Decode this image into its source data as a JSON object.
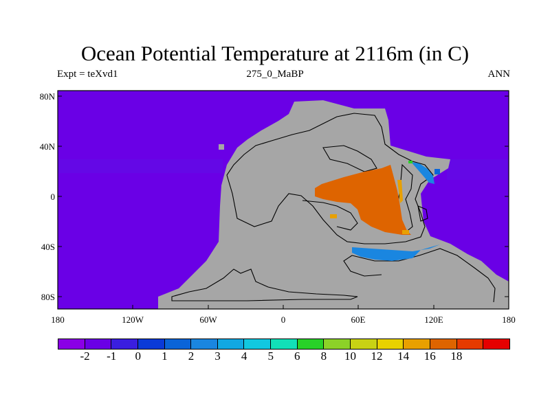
{
  "title": "Ocean Potential Temperature at 2116m (in C)",
  "subtitle_left": "Expt = teXvd1",
  "subtitle_center": "275_0_MaBP",
  "subtitle_right": "ANN",
  "axes": {
    "lon_ticks": [
      "180",
      "120W",
      "60W",
      "0",
      "60E",
      "120E",
      "180"
    ],
    "lat_ticks": [
      "80N",
      "40N",
      "0",
      "40S",
      "80S"
    ]
  },
  "colors": {
    "ocean_base": "#6a00e6",
    "land": "#a6a6a6",
    "warm_basin": "#de6400",
    "warm_edge": "#e8a000",
    "cool_shelf": "#1a86e0",
    "coast_line": "#000000"
  },
  "colorbar": {
    "colors": [
      "#8a00e6",
      "#6a00e6",
      "#3a1ee0",
      "#0a3ad8",
      "#0a64d8",
      "#1a86e0",
      "#12a8e2",
      "#12c8e0",
      "#12e0b8",
      "#28d228",
      "#8cd228",
      "#c8d214",
      "#e8d200",
      "#e8a000",
      "#de6400",
      "#e63a00",
      "#e60000"
    ],
    "labels": [
      "-2",
      "-1",
      "0",
      "1",
      "2",
      "3",
      "4",
      "5",
      "6",
      "8",
      "10",
      "12",
      "14",
      "16",
      "18"
    ]
  }
}
